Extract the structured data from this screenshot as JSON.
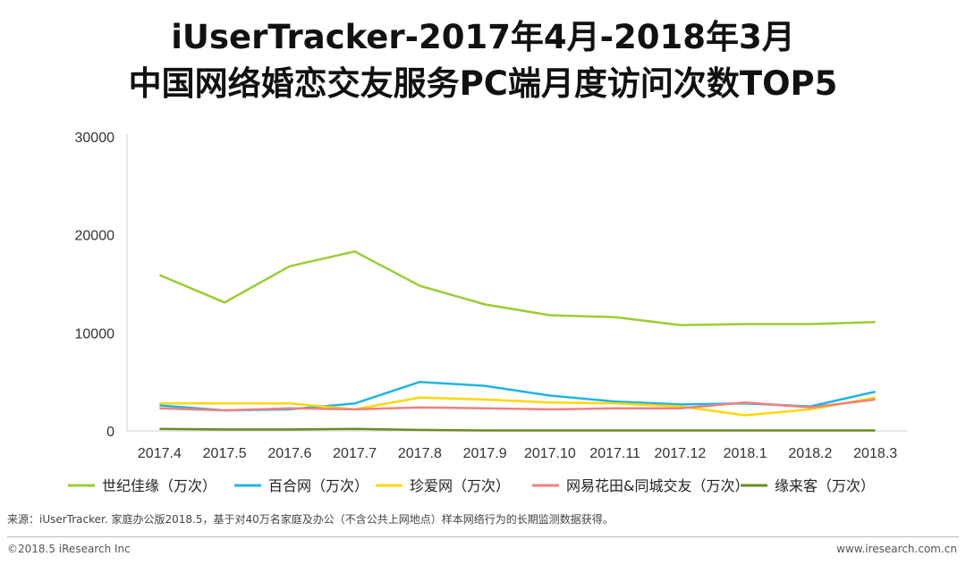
{
  "title_line1": "iUserTracker-2017年4月-2018年3月",
  "title_line2": "中国网络婚恋交友服务PC端月度访问次数TOP5",
  "source_note": "来源：iUserTracker. 家庭办公版2018.5，基于对40万名家庭及办公（不含公共上网地点）样本网络行为的长期监测数据获得。",
  "footer_left": "©2018.5 iResearch Inc",
  "footer_right": "www.iresearch.com.cn",
  "chart_data": {
    "type": "line",
    "title": "",
    "xlabel": "",
    "ylabel": "",
    "ylim": [
      0,
      30000
    ],
    "yticks": [
      "0",
      "10000",
      "20000",
      "30000"
    ],
    "grid": false,
    "legend_position": "bottom",
    "categories": [
      "2017.4",
      "2017.5",
      "2017.6",
      "2017.7",
      "2017.8",
      "2017.9",
      "2017.10",
      "2017.11",
      "2017.12",
      "2018.1",
      "2018.2",
      "2018.3"
    ],
    "series": [
      {
        "name": "世纪佳缘（万次）",
        "color": "#9ACD32",
        "values": [
          15900,
          13100,
          16800,
          18300,
          14800,
          12900,
          11800,
          11600,
          10800,
          10900,
          10900,
          11100
        ]
      },
      {
        "name": "百合网（万次）",
        "color": "#1FB5E3",
        "values": [
          2600,
          2100,
          2200,
          2800,
          5000,
          4600,
          3600,
          3000,
          2700,
          2800,
          2500,
          4000
        ]
      },
      {
        "name": "珍爱网（万次）",
        "color": "#FFD700",
        "values": [
          2800,
          2800,
          2800,
          2200,
          3400,
          3200,
          2900,
          2800,
          2500,
          1600,
          2200,
          3400
        ]
      },
      {
        "name": "网易花田&同城交友（万次）",
        "color": "#F08080",
        "values": [
          2300,
          2100,
          2300,
          2200,
          2400,
          2300,
          2200,
          2300,
          2300,
          2900,
          2400,
          3200
        ]
      },
      {
        "name": "缘来客（万次）",
        "color": "#6B8E23",
        "values": [
          200,
          150,
          150,
          200,
          100,
          50,
          50,
          50,
          50,
          50,
          50,
          50
        ]
      }
    ]
  }
}
